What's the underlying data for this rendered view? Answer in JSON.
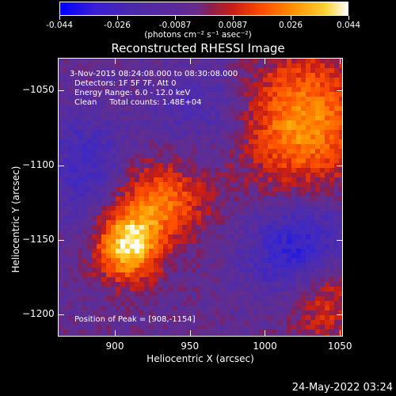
{
  "colorbar": {
    "tick_labels": [
      "-0.044",
      "-0.026",
      "-0.0087",
      "0.0087",
      "0.026",
      "0.044"
    ],
    "units": "(photons cm⁻² s⁻¹ asec⁻²)"
  },
  "chart_data": {
    "type": "heatmap",
    "title": "Reconstructed RHESSI Image",
    "xlabel": "Heliocentric X (arcsec)",
    "ylabel": "Heliocentric Y (arcsec)",
    "xlim": [
      862,
      1052
    ],
    "ylim": [
      -1215,
      -1028
    ],
    "x_ticks": [
      "900",
      "950",
      "1000",
      "1050"
    ],
    "y_ticks": [
      "-1050",
      "-1100",
      "-1150",
      "-1200"
    ],
    "color_range": [
      -0.044,
      0.044
    ],
    "sources": [
      {
        "x": 908,
        "y": -1154,
        "sx": 14,
        "sy": 16,
        "amp": 0.044
      },
      {
        "x": 930,
        "y": -1125,
        "sx": 20,
        "sy": 18,
        "amp": 0.028
      },
      {
        "x": 1025,
        "y": -1070,
        "sx": 28,
        "sy": 30,
        "amp": 0.034
      },
      {
        "x": 1040,
        "y": -1185,
        "sx": 18,
        "sy": 22,
        "amp": 0.022
      },
      {
        "x": 1025,
        "y": -1158,
        "sx": 25,
        "sy": 22,
        "amp": -0.03
      },
      {
        "x": 880,
        "y": -1100,
        "sx": 18,
        "sy": 26,
        "amp": -0.018
      },
      {
        "x": 960,
        "y": -1060,
        "sx": 25,
        "sy": 20,
        "amp": -0.012
      }
    ]
  },
  "annotations": {
    "time": "3-Nov-2015 08:24:08.000 to 08:30:08.000",
    "detectors": "Detectors: 1F 5F 7F, Att 0",
    "energy": "Energy Range: 6.0 - 12.0 keV",
    "clean": "Clean     Total counts: 1.48E+04",
    "peak": "Position of Peak = [908,-1154]"
  },
  "datestamp": "24-May-2022 03:24"
}
